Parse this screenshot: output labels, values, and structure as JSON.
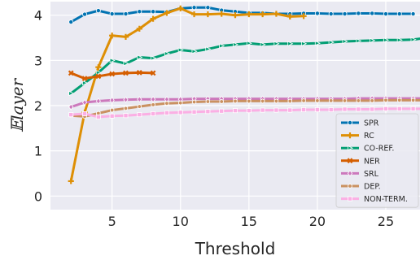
{
  "chart_data": {
    "type": "line",
    "xlabel": "Threshold",
    "ylabel": "𝔼layer",
    "xlim": [
      0.5,
      27.5
    ],
    "ylim": [
      -0.3,
      4.3
    ],
    "xticks": [
      5,
      10,
      15,
      20,
      25
    ],
    "yticks": [
      0,
      1,
      2,
      3,
      4
    ],
    "grid": true,
    "background": "#eaeaf2",
    "legend_position": "bottom-right",
    "series": [
      {
        "name": "SPR",
        "color": "#0173b2",
        "marker": "circle",
        "x": [
          2,
          3,
          4,
          5,
          6,
          7,
          8,
          9,
          10,
          11,
          12,
          13,
          14,
          15,
          16,
          17,
          18,
          19,
          20,
          21,
          22,
          23,
          24,
          25,
          26,
          27
        ],
        "y": [
          3.85,
          4.02,
          4.1,
          4.03,
          4.03,
          4.08,
          4.08,
          4.07,
          4.15,
          4.17,
          4.17,
          4.11,
          4.08,
          4.05,
          4.05,
          4.03,
          4.03,
          4.04,
          4.04,
          4.03,
          4.03,
          4.04,
          4.04,
          4.03,
          4.03,
          4.03
        ]
      },
      {
        "name": "RC",
        "color": "#de8f05",
        "marker": "plus",
        "x": [
          2,
          3,
          4,
          5,
          6,
          7,
          8,
          9,
          10,
          11,
          12,
          13,
          14,
          15,
          16,
          17,
          18,
          19
        ],
        "y": [
          0.33,
          1.85,
          2.85,
          3.55,
          3.52,
          3.7,
          3.92,
          4.05,
          4.15,
          4.02,
          4.02,
          4.03,
          4.0,
          4.02,
          4.02,
          4.03,
          3.97,
          3.98
        ]
      },
      {
        "name": "CO-REF.",
        "color": "#029e73",
        "marker": "triangle-right",
        "x": [
          2,
          3,
          4,
          5,
          6,
          7,
          8,
          9,
          10,
          11,
          12,
          13,
          14,
          15,
          16,
          17,
          18,
          19,
          20,
          21,
          22,
          23,
          24,
          25,
          26,
          27,
          28
        ],
        "y": [
          2.27,
          2.5,
          2.73,
          3.0,
          2.93,
          3.07,
          3.05,
          3.15,
          3.23,
          3.2,
          3.25,
          3.32,
          3.35,
          3.38,
          3.35,
          3.37,
          3.37,
          3.37,
          3.38,
          3.4,
          3.42,
          3.43,
          3.44,
          3.45,
          3.45,
          3.46,
          3.5
        ]
      },
      {
        "name": "NER",
        "color": "#d55e00",
        "marker": "x",
        "x": [
          2,
          3,
          4,
          5,
          6,
          7,
          8
        ],
        "y": [
          2.72,
          2.6,
          2.65,
          2.7,
          2.72,
          2.73,
          2.72
        ]
      },
      {
        "name": "SRL",
        "color": "#cc78bc",
        "marker": "diamond",
        "x": [
          2,
          3,
          4,
          5,
          6,
          7,
          8,
          9,
          10,
          11,
          12,
          13,
          14,
          15,
          16,
          17,
          18,
          19,
          20,
          21,
          22,
          23,
          24,
          25,
          26,
          27,
          28
        ],
        "y": [
          1.97,
          2.07,
          2.1,
          2.12,
          2.13,
          2.14,
          2.14,
          2.14,
          2.14,
          2.15,
          2.15,
          2.15,
          2.15,
          2.15,
          2.15,
          2.15,
          2.15,
          2.15,
          2.15,
          2.15,
          2.15,
          2.16,
          2.16,
          2.16,
          2.16,
          2.16,
          2.16
        ]
      },
      {
        "name": "DEP.",
        "color": "#ca9161",
        "marker": "hexagon",
        "x": [
          2,
          3,
          4,
          5,
          6,
          7,
          8,
          9,
          10,
          11,
          12,
          13,
          14,
          15,
          16,
          17,
          18,
          19,
          20,
          21,
          22,
          23,
          24,
          25,
          26,
          27,
          28
        ],
        "y": [
          1.78,
          1.76,
          1.83,
          1.9,
          1.94,
          1.98,
          2.02,
          2.05,
          2.06,
          2.08,
          2.09,
          2.09,
          2.1,
          2.1,
          2.1,
          2.1,
          2.1,
          2.11,
          2.11,
          2.11,
          2.11,
          2.11,
          2.11,
          2.12,
          2.12,
          2.12,
          2.12
        ]
      },
      {
        "name": "NON-TERM.",
        "color": "#fbafe4",
        "marker": "square",
        "x": [
          2,
          3,
          4,
          5,
          6,
          7,
          8,
          9,
          10,
          11,
          12,
          13,
          14,
          15,
          16,
          17,
          18,
          19,
          20,
          21,
          22,
          23,
          24,
          25,
          26,
          27,
          28
        ],
        "y": [
          1.8,
          1.82,
          1.75,
          1.77,
          1.78,
          1.8,
          1.82,
          1.84,
          1.85,
          1.86,
          1.87,
          1.88,
          1.89,
          1.89,
          1.9,
          1.9,
          1.9,
          1.91,
          1.91,
          1.91,
          1.92,
          1.92,
          1.92,
          1.93,
          1.93,
          1.93,
          1.93
        ]
      }
    ]
  }
}
